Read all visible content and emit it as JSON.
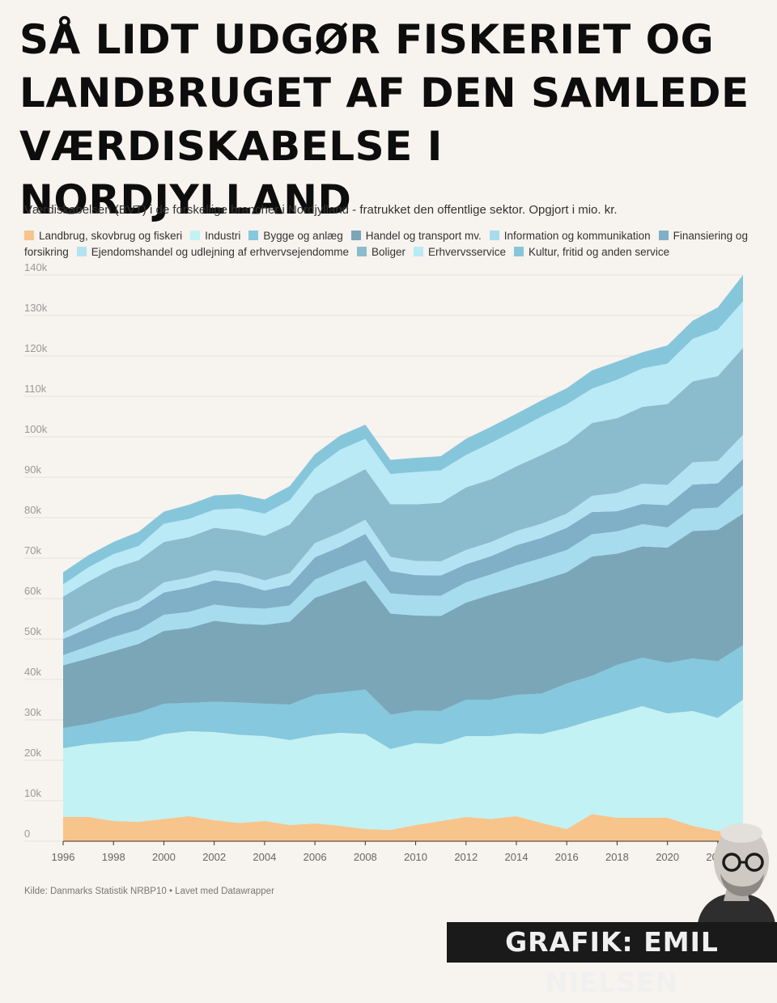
{
  "header": {
    "title": "SÅ LIDT UDGØR FISKERIET OG LANDBRUGET AF DEN SAMLEDE VÆRDISKABELSE I NORDJYLLAND",
    "subtitle": "Værdiskabelsen (BVT) i de forskellige brancher i Nordjylland - fratrukket den offentlige sektor. Opgjort i mio. kr."
  },
  "footer": {
    "source": "Kilde: Danmarks Statistik NRBP10 • Lavet med Datawrapper",
    "credit": "GRAFIK: EMIL NIELSEN"
  },
  "colors": [
    "#f7c48b",
    "#c2f2f3",
    "#86c8dd",
    "#7aa6b8",
    "#a6dcee",
    "#7fb0c8",
    "#b3e3f3",
    "#8bbccd",
    "#b9eaf6",
    "#86c6db"
  ],
  "chart_data": {
    "type": "area",
    "stacked": true,
    "x": [
      1996,
      1997,
      1998,
      1999,
      2000,
      2001,
      2002,
      2003,
      2004,
      2005,
      2006,
      2007,
      2008,
      2009,
      2010,
      2011,
      2012,
      2013,
      2014,
      2015,
      2016,
      2017,
      2018,
      2019,
      2020,
      2021,
      2022,
      2023
    ],
    "xticks": [
      "1996",
      "1998",
      "2000",
      "2002",
      "2004",
      "2006",
      "2008",
      "2010",
      "2012",
      "2014",
      "2016",
      "2018",
      "2020",
      "2022"
    ],
    "yticks": [
      "0",
      "10k",
      "20k",
      "30k",
      "40k",
      "50k",
      "60k",
      "70k",
      "80k",
      "90k",
      "100k",
      "110k",
      "120k",
      "130k",
      "140k"
    ],
    "ylim": [
      0,
      140000
    ],
    "grid": true,
    "legend_position": "top",
    "series": [
      {
        "name": "Landbrug, skovbrug og fiskeri",
        "values": [
          6000,
          6000,
          5000,
          4800,
          5500,
          6200,
          5200,
          4500,
          5000,
          4000,
          4400,
          3800,
          3000,
          2800,
          4000,
          5000,
          6000,
          5500,
          6200,
          4500,
          3000,
          6700,
          5800,
          5800,
          5800,
          3800,
          2500,
          2500
        ]
      },
      {
        "name": "Industri",
        "values": [
          17000,
          18000,
          19500,
          20000,
          21000,
          21000,
          21800,
          21800,
          21000,
          21000,
          21800,
          23000,
          23500,
          20000,
          20300,
          19000,
          20000,
          20500,
          20500,
          22000,
          25000,
          23200,
          25800,
          27600,
          25800,
          28400,
          28000,
          32500
        ]
      },
      {
        "name": "Bygge og anlæg",
        "values": [
          5000,
          5000,
          6000,
          7000,
          7500,
          7000,
          7500,
          8000,
          8000,
          8800,
          10000,
          10000,
          11000,
          8500,
          8000,
          8200,
          9000,
          9000,
          9500,
          10000,
          11000,
          11000,
          12000,
          12000,
          12500,
          13000,
          14000,
          13500
        ]
      },
      {
        "name": "Handel og transport mv.",
        "values": [
          15500,
          16200,
          16500,
          17000,
          18000,
          18500,
          20000,
          19500,
          19500,
          20500,
          24000,
          25500,
          27000,
          25000,
          23500,
          23500,
          24000,
          26000,
          26500,
          28000,
          27500,
          29500,
          27500,
          27500,
          28500,
          31500,
          32500,
          32500
        ]
      },
      {
        "name": "Information og kommunikation",
        "values": [
          2500,
          3000,
          3500,
          3500,
          4000,
          4000,
          4000,
          4000,
          4000,
          4000,
          4500,
          5000,
          5000,
          5000,
          5000,
          5000,
          5000,
          5000,
          5500,
          5500,
          5500,
          5500,
          5500,
          5500,
          5000,
          5500,
          5500,
          7000
        ]
      },
      {
        "name": "Finansiering og forsikring",
        "values": [
          4000,
          4500,
          5000,
          5200,
          5500,
          6000,
          6000,
          6000,
          4500,
          5000,
          5500,
          5500,
          6500,
          5500,
          5000,
          5000,
          4500,
          4500,
          5000,
          5000,
          5500,
          5500,
          5000,
          5000,
          5500,
          6000,
          6000,
          6500
        ]
      },
      {
        "name": "Ejendomshandel og udlejning af erhvervsejendomme",
        "values": [
          1500,
          2000,
          2000,
          2000,
          2500,
          2500,
          2500,
          2500,
          2500,
          3000,
          3500,
          3500,
          3500,
          3500,
          3500,
          3500,
          3500,
          3500,
          3500,
          3500,
          3500,
          4000,
          4500,
          5000,
          5000,
          5500,
          5500,
          6000
        ]
      },
      {
        "name": "Boliger",
        "values": [
          9000,
          9500,
          10000,
          10000,
          10000,
          10000,
          10500,
          10500,
          11000,
          12000,
          12000,
          12500,
          12500,
          13000,
          14000,
          14500,
          15500,
          15500,
          16000,
          17000,
          17500,
          18000,
          18500,
          19000,
          20000,
          20000,
          21000,
          21500
        ]
      },
      {
        "name": "Erhvervsservice",
        "values": [
          3000,
          3500,
          3500,
          3500,
          4500,
          4500,
          4500,
          5500,
          5500,
          6000,
          6500,
          8000,
          7500,
          7500,
          8000,
          8000,
          8000,
          9000,
          9000,
          9500,
          9500,
          8500,
          9500,
          9500,
          10000,
          10500,
          11500,
          11500
        ]
      },
      {
        "name": "Kultur, fritid og anden service",
        "values": [
          3000,
          3000,
          3000,
          3500,
          3000,
          3500,
          3500,
          3500,
          3500,
          3500,
          3500,
          3500,
          3500,
          3500,
          3500,
          3500,
          4000,
          4000,
          4000,
          4000,
          4000,
          4500,
          4500,
          4000,
          4500,
          4500,
          5500,
          6500
        ]
      }
    ]
  }
}
